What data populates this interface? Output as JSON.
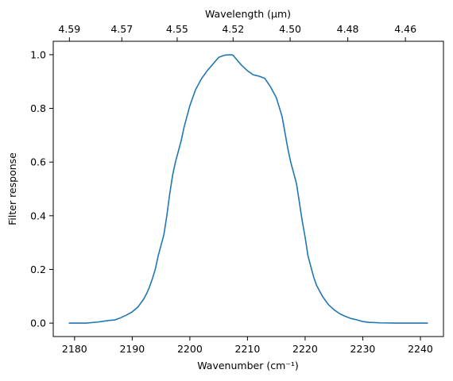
{
  "chart_data": {
    "type": "line",
    "xlabel": "Wavenumber (cm⁻¹)",
    "ylabel": "Filter response",
    "top_xlabel": "Wavelength (μm)",
    "xlim": [
      2176.3,
      2244.0
    ],
    "ylim": [
      -0.05,
      1.05
    ],
    "x_ticks": [
      2180,
      2190,
      2200,
      2210,
      2220,
      2230,
      2240
    ],
    "y_ticks": [
      0.0,
      0.2,
      0.4,
      0.6,
      0.8,
      1.0
    ],
    "y_tick_labels": [
      "0.0",
      "0.2",
      "0.4",
      "0.6",
      "0.8",
      "1.0"
    ],
    "top_ticks": [
      {
        "label": "4.59",
        "wavenumber": 2179.1
      },
      {
        "label": "4.57",
        "wavenumber": 2188.2
      },
      {
        "label": "4.55",
        "wavenumber": 2197.8
      },
      {
        "label": "4.52",
        "wavenumber": 2207.5
      },
      {
        "label": "4.50",
        "wavenumber": 2217.4
      },
      {
        "label": "4.48",
        "wavenumber": 2227.4
      },
      {
        "label": "4.46",
        "wavenumber": 2237.4
      }
    ],
    "grid": false,
    "series": [
      {
        "color": "#1f77b4",
        "x": [
          2179.0,
          2182.0,
          2184.0,
          2186.0,
          2187.0,
          2188.0,
          2189.0,
          2190.0,
          2191.0,
          2192.0,
          2192.5,
          2193.0,
          2193.5,
          2194.0,
          2194.5,
          2195.0,
          2195.5,
          2196.0,
          2196.5,
          2197.0,
          2197.5,
          2198.0,
          2198.5,
          2199.0,
          2199.5,
          2200.0,
          2200.5,
          2201.0,
          2202.0,
          2203.0,
          2204.0,
          2205.0,
          2206.0,
          2207.0,
          2207.5,
          2208.0,
          2209.0,
          2210.0,
          2211.0,
          2212.0,
          2213.0,
          2214.0,
          2215.0,
          2216.0,
          2216.5,
          2217.0,
          2217.5,
          2218.0,
          2218.5,
          2219.0,
          2219.5,
          2220.0,
          2220.5,
          2221.0,
          2221.5,
          2222.0,
          2223.0,
          2224.0,
          2225.0,
          2226.0,
          2227.0,
          2228.0,
          2229.0,
          2230.0,
          2231.0,
          2233.0,
          2236.0,
          2239.0,
          2241.3
        ],
        "values": [
          0.0,
          0.0,
          0.004,
          0.01,
          0.012,
          0.02,
          0.03,
          0.042,
          0.06,
          0.09,
          0.11,
          0.135,
          0.165,
          0.2,
          0.25,
          0.29,
          0.33,
          0.4,
          0.48,
          0.55,
          0.6,
          0.64,
          0.68,
          0.73,
          0.77,
          0.81,
          0.84,
          0.87,
          0.91,
          0.94,
          0.965,
          0.99,
          0.998,
          1.0,
          0.998,
          0.985,
          0.96,
          0.94,
          0.925,
          0.92,
          0.912,
          0.88,
          0.84,
          0.77,
          0.71,
          0.65,
          0.6,
          0.56,
          0.52,
          0.45,
          0.38,
          0.32,
          0.25,
          0.21,
          0.17,
          0.14,
          0.1,
          0.07,
          0.05,
          0.035,
          0.025,
          0.017,
          0.012,
          0.006,
          0.003,
          0.001,
          0.0,
          0.0,
          0.0
        ]
      }
    ]
  }
}
